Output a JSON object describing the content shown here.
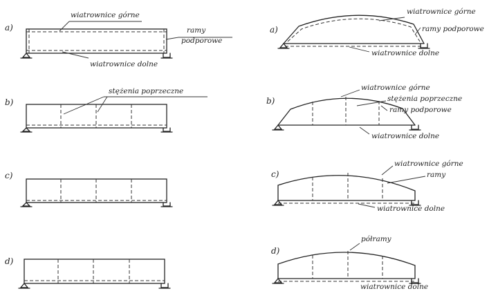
{
  "left": {
    "a": {
      "tag": "a)",
      "top": "wiatrownice górne",
      "side1": "ramy",
      "side2": "podporowe",
      "bottom": "wiatrownice dolne"
    },
    "b": {
      "tag": "b)",
      "mid": "stężenia poprzeczne"
    },
    "c": {
      "tag": "c)"
    },
    "d": {
      "tag": "d)"
    }
  },
  "right": {
    "a": {
      "tag": "a)",
      "top": "wiatrownice górne",
      "side": "ramy podporowe",
      "bottom": "wiatrownice dolne"
    },
    "b": {
      "tag": "b)",
      "top": "wiatrownice górne",
      "mid": "stężenia poprzeczne",
      "side": "ramy podporowe",
      "bottom": "wiatrownice dolne"
    },
    "c": {
      "tag": "c)",
      "top": "wiatrownice górne",
      "side": "ramy",
      "bottom": "wiatrownice dolne"
    },
    "d": {
      "tag": "d)",
      "top": "półramy",
      "bottom": "wiatrownice dolne"
    }
  }
}
